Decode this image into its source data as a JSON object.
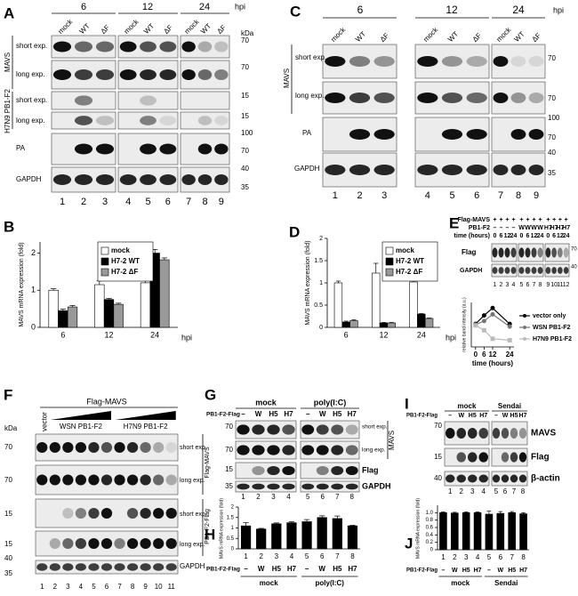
{
  "panels": {
    "A": {
      "letter": "A",
      "timepoints": [
        "6",
        "12",
        "24"
      ],
      "unit": "hpi",
      "lane_labels": [
        "mock",
        "WT",
        "ΔF",
        "mock",
        "WT",
        "ΔF",
        "mock",
        "WT",
        "ΔF"
      ],
      "groups": [
        "MAVS",
        "H7N9 PB1-F2"
      ],
      "rows": [
        "short exp.",
        "long exp.",
        "short exp.",
        "long exp.",
        "PA",
        "GAPDH"
      ],
      "kda": [
        "kDa",
        "70",
        "70",
        "15",
        "15",
        "100",
        "70",
        "40",
        "35"
      ],
      "lanes": [
        "1",
        "2",
        "3",
        "4",
        "5",
        "6",
        "7",
        "8",
        "9"
      ]
    },
    "B": {
      "letter": "B"
    },
    "C": {
      "letter": "C",
      "timepoints": [
        "6",
        "12",
        "24"
      ],
      "unit": "hpi",
      "lane_labels": [
        "mock",
        "WT",
        "ΔF",
        "mock",
        "WT",
        "ΔF",
        "mock",
        "WT",
        "ΔF"
      ],
      "groups": [
        "MAVS"
      ],
      "rows": [
        "short exp.",
        "long exp.",
        "PA",
        "GAPDH"
      ],
      "kda": [
        "70",
        "70",
        "100",
        "70",
        "40",
        "35"
      ],
      "lanes": [
        "1",
        "2",
        "3",
        "4",
        "5",
        "6",
        "7",
        "8",
        "9"
      ]
    },
    "D": {
      "letter": "D"
    },
    "E": {
      "letter": "E",
      "header_labels": [
        "Flag-MAVS",
        "PB1-F2",
        "time (hours)"
      ],
      "flag_mavs": [
        "+",
        "+",
        "+",
        "+",
        "+",
        "+",
        "+",
        "+",
        "+",
        "+",
        "+",
        "+"
      ],
      "pb1_f2": [
        "–",
        "–",
        "–",
        "–",
        "W",
        "W",
        "W",
        "W",
        "H7",
        "H7",
        "H7",
        "H7"
      ],
      "time": [
        "0",
        "6",
        "12",
        "24",
        "0",
        "6",
        "12",
        "24",
        "0",
        "6",
        "12",
        "24"
      ],
      "rows": [
        "Flag",
        "GAPDH"
      ],
      "kda": [
        "70",
        "40"
      ],
      "lanes": [
        "1",
        "2",
        "3",
        "4",
        "5",
        "6",
        "7",
        "8",
        "9",
        "10",
        "11",
        "12"
      ]
    },
    "F": {
      "letter": "F",
      "title": "Flag-MAVS",
      "lane_labels": [
        "vector",
        "WSN PB1-F2",
        "H7N9 PB1-F2"
      ],
      "rows": [
        "short exp.",
        "long exp.",
        "short exp.",
        "long exp.",
        "GAPDH"
      ],
      "groups": [
        "Flag-MAVS",
        "PB1-F2-Flag"
      ],
      "kda": [
        "kDa",
        "70",
        "70",
        "15",
        "15",
        "40",
        "35"
      ],
      "lanes": [
        "1",
        "2",
        "3",
        "4",
        "5",
        "6",
        "7",
        "8",
        "9",
        "10",
        "11"
      ]
    },
    "G": {
      "letter": "G",
      "conditions": [
        "mock",
        "poly(I:C)"
      ],
      "row_title": "PB1-F2-Flag",
      "lane_labels": [
        "–",
        "W",
        "H5",
        "H7",
        "–",
        "W",
        "H5",
        "H7"
      ],
      "rows": [
        "short exp.",
        "long exp.",
        "Flag",
        "GAPDH"
      ],
      "groups": [
        "MAVS"
      ],
      "kda": [
        "70",
        "70",
        "15",
        "35"
      ],
      "lanes": [
        "1",
        "2",
        "3",
        "4",
        "5",
        "6",
        "7",
        "8"
      ]
    },
    "H": {
      "letter": "H",
      "row_title": "PB1-F2-Flag",
      "lane_labels": [
        "–",
        "W",
        "H5",
        "H7",
        "–",
        "W",
        "H5",
        "H7"
      ],
      "conditions": [
        "mock",
        "poly(I:C)"
      ]
    },
    "I": {
      "letter": "I",
      "conditions": [
        "mock",
        "Sendai"
      ],
      "row_title": "PB1-F2-Flag",
      "lane_labels": [
        "–",
        "W",
        "H5",
        "H7",
        "–",
        "W",
        "H5",
        "H7"
      ],
      "rows": [
        "MAVS",
        "Flag",
        "β-actin"
      ],
      "kda": [
        "70",
        "15",
        "40"
      ],
      "lanes": [
        "1",
        "2",
        "3",
        "4",
        "5",
        "6",
        "7",
        "8"
      ]
    },
    "J": {
      "letter": "J",
      "row_title": "PB1-F2-Flag",
      "lane_labels": [
        "–",
        "W",
        "H5",
        "H7",
        "–",
        "W",
        "H5",
        "H7"
      ],
      "conditions": [
        "mock",
        "Sendai"
      ]
    }
  },
  "chart_data": [
    {
      "type": "bar",
      "y_label": "MAVS mRNA expression (fold)",
      "x_label": "hpi",
      "categories": [
        "6",
        "12",
        "24"
      ],
      "series": [
        {
          "name": "mock",
          "color": "#ffffff",
          "values": [
            1.0,
            1.15,
            1.2
          ],
          "errors": [
            0.04,
            0.1,
            0.06
          ]
        },
        {
          "name": "H7-2 WT",
          "color": "#000000",
          "values": [
            0.45,
            0.75,
            2.0
          ],
          "errors": [
            0.04,
            0.03,
            0.1
          ]
        },
        {
          "name": "H7-2 ΔF",
          "color": "#999999",
          "values": [
            0.55,
            0.62,
            1.82
          ],
          "errors": [
            0.04,
            0.03,
            0.05
          ]
        }
      ],
      "ylim": [
        0,
        2.3
      ],
      "yticks": [
        0,
        1,
        2
      ]
    },
    {
      "type": "bar",
      "y_label": "MAVS mRNA expression (fold)",
      "x_label": "hpi",
      "categories": [
        "6",
        "12",
        "24"
      ],
      "series": [
        {
          "name": "mock",
          "color": "#ffffff",
          "values": [
            1.0,
            1.22,
            1.02
          ],
          "errors": [
            0.04,
            0.22,
            0.08
          ]
        },
        {
          "name": "H7-2 WT",
          "color": "#000000",
          "values": [
            0.12,
            0.1,
            0.3
          ],
          "errors": [
            0.02,
            0.01,
            0.01
          ]
        },
        {
          "name": "H7-2 ΔF",
          "color": "#999999",
          "values": [
            0.15,
            0.1,
            0.2
          ],
          "errors": [
            0.02,
            0.01,
            0.01
          ]
        }
      ],
      "ylim": [
        0,
        2
      ],
      "yticks": [
        0,
        0.5,
        1,
        1.5,
        2
      ]
    },
    {
      "type": "line",
      "y_label": "relative band intensity (a.u.)",
      "x_label": "time (hours)",
      "x": [
        0,
        6,
        12,
        24
      ],
      "xlim": [
        -3,
        27
      ],
      "xticks": [
        0,
        6,
        12,
        24
      ],
      "ylim": [
        0,
        1.2
      ],
      "series": [
        {
          "name": "vector only",
          "color": "#000000",
          "values": [
            0.62,
            0.85,
            1.05,
            0.62
          ]
        },
        {
          "name": "WSN PB1-F2",
          "color": "#777777",
          "values": [
            0.6,
            0.7,
            0.88,
            0.55
          ]
        },
        {
          "name": "H7N9 PB1-F2",
          "color": "#bbbbbb",
          "values": [
            0.58,
            0.45,
            0.22,
            0.18
          ]
        }
      ]
    },
    {
      "type": "bar",
      "y_label": "MAVS mRNA expression (fold)",
      "categories": [
        "1",
        "2",
        "3",
        "4",
        "5",
        "6",
        "7",
        "8"
      ],
      "values": [
        1.1,
        0.95,
        1.2,
        1.25,
        1.3,
        1.5,
        1.45,
        1.1
      ],
      "errors": [
        0.15,
        0.03,
        0.04,
        0.05,
        0.1,
        0.08,
        0.12,
        0.03
      ],
      "color": "#000000",
      "ylim": [
        0,
        2
      ],
      "yticks": [
        0,
        0.5,
        1,
        1.5,
        2
      ]
    },
    {
      "type": "bar",
      "y_label": "MAVS mRNA expression (fold)",
      "categories": [
        "1",
        "2",
        "3",
        "4",
        "5",
        "6",
        "7",
        "8"
      ],
      "values": [
        1.0,
        0.99,
        1.0,
        1.0,
        0.96,
        0.98,
        1.0,
        0.97
      ],
      "errors": [
        0.02,
        0.02,
        0.02,
        0.02,
        0.08,
        0.05,
        0.03,
        0.03
      ],
      "color": "#000000",
      "ylim": [
        0,
        1.2
      ],
      "yticks": [
        0,
        0.2,
        0.4,
        0.6,
        0.8,
        {
          "value": 1,
          "label": "1.0"
        }
      ]
    }
  ]
}
